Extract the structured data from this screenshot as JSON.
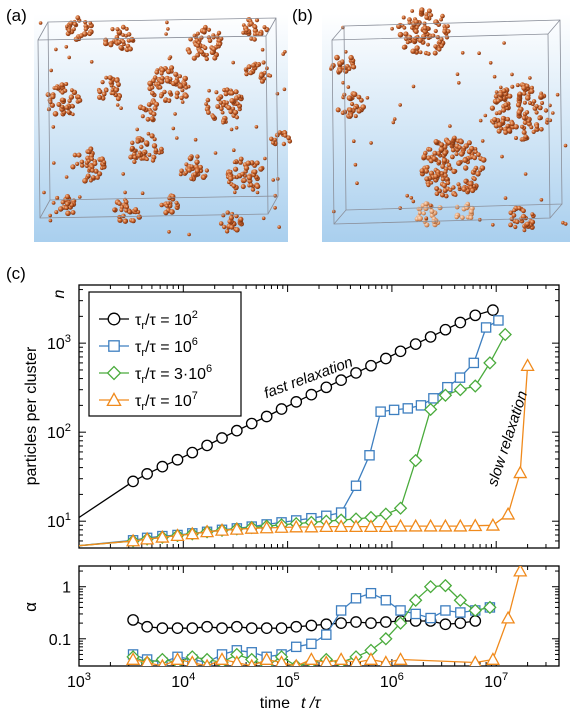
{
  "panel_labels": {
    "a": "(a)",
    "b": "(b)",
    "c": "(c)"
  },
  "colors": {
    "series_1": "#000000",
    "series_2": "#3e7fc0",
    "series_3": "#4aab3c",
    "series_4": "#f08a1c",
    "particles": "#c8602a",
    "snapshot_bg_top": "#ffffff",
    "snapshot_bg_bottom": "#a9cfee"
  },
  "chart_data": [
    {
      "type": "line",
      "ylabel": "particles per cluster",
      "ylabel_symbol": "n",
      "x_scale": "log",
      "y_scale": "log",
      "xlim": [
        1000,
        40000000
      ],
      "ylim": [
        5,
        4500
      ],
      "x_ticks": [
        {
          "value": 1000,
          "label": "10",
          "exp": "3"
        },
        {
          "value": 10000,
          "label": "10",
          "exp": "4"
        },
        {
          "value": 100000,
          "label": "10",
          "exp": "5"
        },
        {
          "value": 1000000,
          "label": "10",
          "exp": "6"
        },
        {
          "value": 10000000,
          "label": "10",
          "exp": "7"
        }
      ],
      "y_ticks": [
        {
          "value": 10,
          "label": "10",
          "exp": "1"
        },
        {
          "value": 100,
          "label": "10",
          "exp": "2"
        },
        {
          "value": 1000,
          "label": "10",
          "exp": "3"
        }
      ],
      "legend_position": "top-left",
      "annotations": [
        "fast relaxation",
        "slow relaxation"
      ],
      "series": [
        {
          "name": "τr/τ = 10²",
          "legend": {
            "main": "τ",
            "sub": "r",
            "rest": "/τ = 10",
            "sup": "2"
          },
          "marker": "circle",
          "x": [
            1000,
            3300,
            4500,
            6300,
            8800,
            12200,
            16900,
            23500,
            32600,
            45300,
            63000,
            87500,
            121000,
            169000,
            235000,
            326000,
            453000,
            630000,
            875000,
            1210000,
            1690000,
            2350000,
            3260000,
            4530000,
            6300000,
            9300000
          ],
          "y": [
            11,
            28,
            34,
            41,
            49,
            59,
            71,
            86,
            104,
            125,
            150,
            182,
            219,
            264,
            319,
            384,
            463,
            558,
            672,
            810,
            976,
            1175,
            1416,
            1705,
            2055,
            2350
          ]
        },
        {
          "name": "τr/τ = 10⁶",
          "legend": {
            "main": "τ",
            "sub": "r",
            "rest": "/τ = 10",
            "sup": "6"
          },
          "marker": "square",
          "x": [
            1000,
            3300,
            4500,
            6300,
            8800,
            12200,
            16900,
            23500,
            32600,
            45300,
            63000,
            87500,
            121000,
            169000,
            235000,
            326000,
            453000,
            610000,
            780000,
            1050000,
            1420000,
            1900000,
            2500000,
            3400000,
            4500000,
            6100000,
            8000000,
            10500000
          ],
          "y": [
            5.3,
            6.1,
            6.5,
            6.8,
            7.0,
            7.3,
            7.6,
            8.0,
            8.3,
            8.7,
            9.2,
            9.7,
            10.2,
            10.8,
            11.5,
            12.5,
            25,
            55,
            170,
            178,
            185,
            200,
            240,
            320,
            410,
            600,
            1500,
            1800
          ]
        },
        {
          "name": "τr/τ = 3·10⁶",
          "legend": {
            "main": "τ",
            "sub": "r",
            "rest": "/τ = 3·10",
            "sup": "6"
          },
          "marker": "diamond",
          "x": [
            1000,
            3300,
            4500,
            6300,
            8800,
            12200,
            16900,
            23500,
            32600,
            45300,
            63000,
            87500,
            121000,
            169000,
            235000,
            326000,
            453000,
            630000,
            875000,
            1210000,
            1690000,
            2350000,
            3260000,
            4530000,
            6300000,
            8700000,
            12200000
          ],
          "y": [
            5.3,
            6.0,
            6.3,
            6.6,
            6.9,
            7.2,
            7.6,
            7.9,
            8.2,
            8.5,
            8.8,
            9.1,
            9.4,
            9.7,
            10.0,
            10.3,
            10.6,
            11.0,
            12.0,
            14,
            48,
            180,
            260,
            300,
            330,
            600,
            1250
          ]
        },
        {
          "name": "τr/τ = 10⁷",
          "legend": {
            "main": "τ",
            "sub": "r",
            "rest": "/τ = 10",
            "sup": "7"
          },
          "marker": "triangle",
          "x": [
            1000,
            3300,
            4500,
            6300,
            8800,
            12200,
            16900,
            23500,
            32600,
            45300,
            63000,
            87500,
            121000,
            169000,
            235000,
            326000,
            453000,
            630000,
            875000,
            1210000,
            1690000,
            2350000,
            3260000,
            4530000,
            6300000,
            9300000,
            13000000,
            17000000,
            20000000
          ],
          "y": [
            5.3,
            6.0,
            6.3,
            6.6,
            6.9,
            7.2,
            7.6,
            7.9,
            8.1,
            8.3,
            8.4,
            8.5,
            8.6,
            8.6,
            8.7,
            8.7,
            8.7,
            8.7,
            8.7,
            8.8,
            8.8,
            8.8,
            8.8,
            8.8,
            8.9,
            9.0,
            12,
            35,
            560
          ]
        }
      ]
    },
    {
      "type": "line",
      "ylabel": "α",
      "xlabel": "time",
      "xlabel_symbol": "t /τ",
      "x_scale": "log",
      "y_scale": "log",
      "xlim": [
        1000,
        40000000
      ],
      "ylim": [
        0.03,
        2.5
      ],
      "x_ticks": [
        {
          "value": 1000,
          "label": "10",
          "exp": "3"
        },
        {
          "value": 10000,
          "label": "10",
          "exp": "4"
        },
        {
          "value": 100000,
          "label": "10",
          "exp": "5"
        },
        {
          "value": 1000000,
          "label": "10",
          "exp": "6"
        },
        {
          "value": 10000000,
          "label": "10",
          "exp": "7"
        }
      ],
      "y_ticks": [
        {
          "value": 0.1,
          "label": "0.1"
        },
        {
          "value": 1,
          "label": "1"
        }
      ],
      "series": [
        {
          "name": "τr/τ = 10²",
          "marker": "circle",
          "x": [
            3300,
            4500,
            6300,
            8800,
            12200,
            16900,
            23500,
            32600,
            45300,
            63000,
            87500,
            121000,
            169000,
            235000,
            326000,
            453000,
            630000,
            875000,
            1210000,
            1690000,
            2350000,
            3260000,
            4530000,
            6300000
          ],
          "y": [
            0.23,
            0.17,
            0.16,
            0.16,
            0.16,
            0.17,
            0.16,
            0.17,
            0.16,
            0.16,
            0.16,
            0.17,
            0.18,
            0.19,
            0.2,
            0.21,
            0.2,
            0.21,
            0.22,
            0.22,
            0.22,
            0.19,
            0.2,
            0.22
          ]
        },
        {
          "name": "τr/τ = 10⁶",
          "marker": "square",
          "x": [
            3300,
            4500,
            6300,
            8800,
            12200,
            16900,
            23500,
            32600,
            45300,
            63000,
            87500,
            121000,
            169000,
            235000,
            326000,
            453000,
            630000,
            875000,
            1210000,
            1690000,
            2350000,
            3260000,
            4530000,
            6300000,
            8700000
          ],
          "y": [
            0.05,
            0.04,
            0.035,
            0.045,
            0.04,
            0.035,
            0.05,
            0.06,
            0.055,
            0.045,
            0.05,
            0.07,
            0.08,
            0.12,
            0.35,
            0.6,
            0.75,
            0.55,
            0.35,
            0.3,
            0.25,
            0.35,
            0.32,
            0.35,
            0.4
          ]
        },
        {
          "name": "τr/τ = 3·10⁶",
          "marker": "diamond",
          "x": [
            3300,
            4500,
            6300,
            8800,
            12200,
            16900,
            23500,
            32600,
            45300,
            63000,
            87500,
            121000,
            169000,
            235000,
            326000,
            453000,
            630000,
            875000,
            1210000,
            1690000,
            2350000,
            3260000,
            4530000,
            6300000,
            8700000
          ],
          "y": [
            0.045,
            0.035,
            0.04,
            0.035,
            0.045,
            0.04,
            0.035,
            0.05,
            0.04,
            0.03,
            0.045,
            0.03,
            0.035,
            0.04,
            0.035,
            0.045,
            0.06,
            0.1,
            0.2,
            0.55,
            1.0,
            1.05,
            0.55,
            0.35,
            0.4
          ]
        },
        {
          "name": "τr/τ = 10⁷",
          "marker": "triangle",
          "x": [
            3300,
            4500,
            6300,
            8800,
            12200,
            16900,
            23500,
            32600,
            45300,
            63000,
            87500,
            121000,
            169000,
            235000,
            326000,
            453000,
            630000,
            875000,
            1210000,
            6300000,
            9300000,
            13000000,
            17000000
          ],
          "y": [
            0.04,
            0.035,
            0.03,
            0.04,
            0.035,
            0.03,
            0.04,
            0.035,
            0.03,
            0.04,
            0.035,
            0.03,
            0.04,
            0.035,
            0.04,
            0.035,
            0.04,
            0.035,
            0.04,
            0.035,
            0.04,
            0.25,
            2.0
          ]
        }
      ]
    }
  ]
}
